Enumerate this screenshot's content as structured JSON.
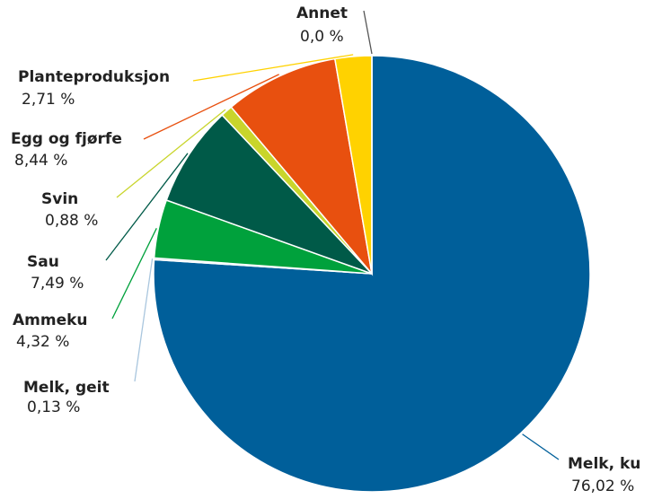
{
  "chart_data": {
    "type": "pie",
    "categories": [
      "Melk, ku",
      "Melk, geit",
      "Ammeku",
      "Sau",
      "Svin",
      "Egg og fjørfe",
      "Planteproduksjon",
      "Annet"
    ],
    "values": [
      76.02,
      0.13,
      4.32,
      7.49,
      0.88,
      8.44,
      2.71,
      0.0
    ],
    "value_labels": [
      "76,02 %",
      "0,13 %",
      "4,32 %",
      "7,49 %",
      "0,88 %",
      "8,44 %",
      "2,71 %",
      "0,0 %"
    ],
    "colors": [
      "#005f9a",
      "#a9c6de",
      "#00a13c",
      "#005a48",
      "#c9d52c",
      "#e8500f",
      "#ffd200",
      "#555555"
    ]
  }
}
